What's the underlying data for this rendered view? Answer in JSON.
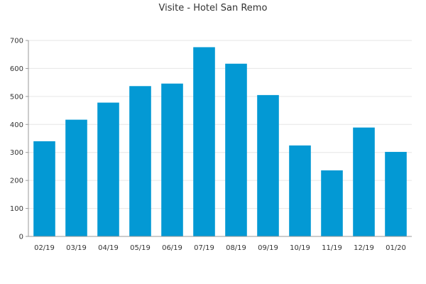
{
  "chart_data": {
    "type": "bar",
    "title": "Visite - Hotel San Remo",
    "categories": [
      "02/19",
      "03/19",
      "04/19",
      "05/19",
      "06/19",
      "07/19",
      "08/19",
      "09/19",
      "10/19",
      "11/19",
      "12/19",
      "01/20"
    ],
    "values": [
      340,
      417,
      478,
      537,
      546,
      676,
      617,
      505,
      325,
      236,
      389,
      302
    ],
    "ylim": [
      0,
      700
    ],
    "yticks": [
      0,
      100,
      200,
      300,
      400,
      500,
      600,
      700
    ],
    "grid": true,
    "legend": "none",
    "bar_color": "#0399d4",
    "grid_color": "#e6e6e6",
    "axis_color": "#999999"
  }
}
